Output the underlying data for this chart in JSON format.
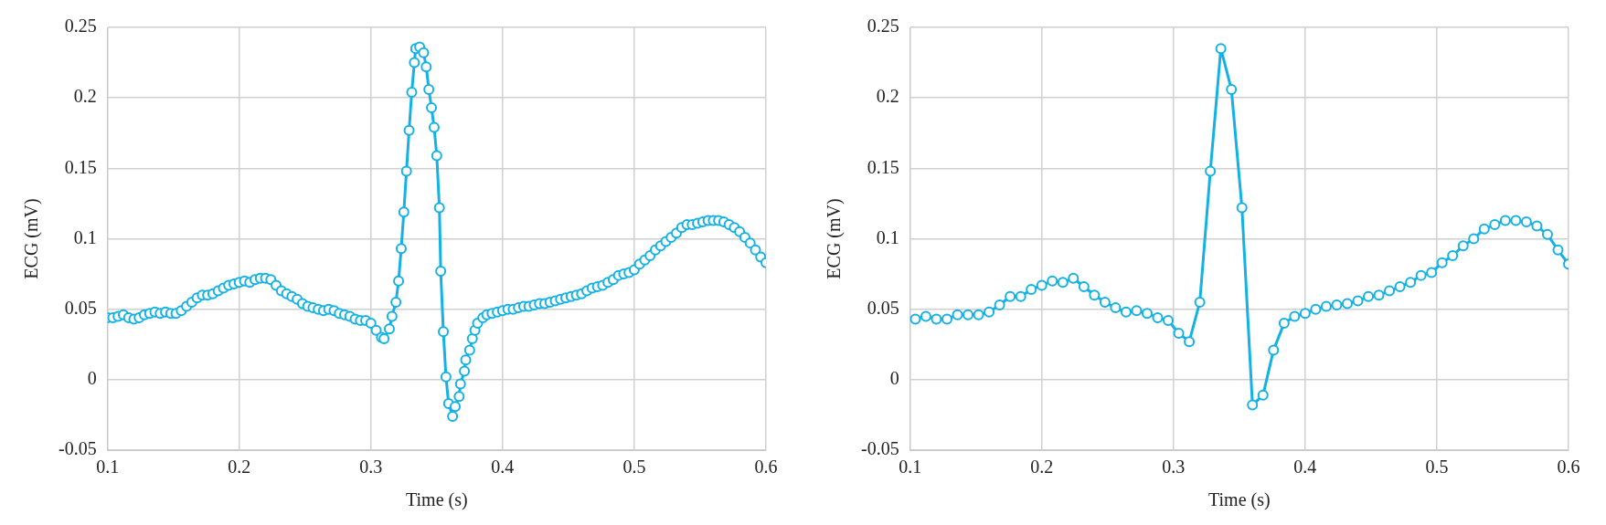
{
  "chart_data": [
    {
      "type": "line",
      "xlabel": "Time (s)",
      "ylabel": "ECG (mV)",
      "xlim": [
        0.1,
        0.6
      ],
      "xticks": [
        0.1,
        0.2,
        0.3,
        0.4,
        0.5,
        0.6
      ],
      "ylim": [
        -0.05,
        0.25
      ],
      "yticks": [
        -0.05,
        0,
        0.05,
        0.1,
        0.15,
        0.2,
        0.25
      ],
      "grid": true,
      "legend": false,
      "marker": "circle",
      "line_style": "solid",
      "series": [
        {
          "color": "#14b1e7",
          "x": [
            0.1,
            0.104,
            0.108,
            0.112,
            0.116,
            0.12,
            0.124,
            0.128,
            0.132,
            0.136,
            0.14,
            0.144,
            0.148,
            0.152,
            0.156,
            0.16,
            0.164,
            0.168,
            0.172,
            0.176,
            0.18,
            0.184,
            0.188,
            0.192,
            0.196,
            0.2,
            0.204,
            0.208,
            0.212,
            0.216,
            0.22,
            0.224,
            0.228,
            0.232,
            0.236,
            0.24,
            0.244,
            0.248,
            0.252,
            0.256,
            0.26,
            0.264,
            0.268,
            0.272,
            0.276,
            0.28,
            0.284,
            0.288,
            0.292,
            0.296,
            0.3,
            0.304,
            0.308,
            0.31,
            0.314,
            0.316,
            0.319,
            0.321,
            0.323,
            0.325,
            0.327,
            0.329,
            0.331,
            0.333,
            0.334,
            0.337,
            0.34,
            0.342,
            0.344,
            0.346,
            0.348,
            0.35,
            0.352,
            0.353,
            0.355,
            0.357,
            0.359,
            0.362,
            0.364,
            0.367,
            0.368,
            0.371,
            0.372,
            0.375,
            0.377,
            0.379,
            0.381,
            0.385,
            0.388,
            0.392,
            0.396,
            0.4,
            0.404,
            0.408,
            0.412,
            0.416,
            0.42,
            0.424,
            0.428,
            0.432,
            0.436,
            0.44,
            0.444,
            0.448,
            0.452,
            0.456,
            0.46,
            0.464,
            0.468,
            0.472,
            0.476,
            0.48,
            0.484,
            0.488,
            0.492,
            0.496,
            0.5,
            0.504,
            0.508,
            0.512,
            0.516,
            0.52,
            0.524,
            0.528,
            0.532,
            0.536,
            0.54,
            0.544,
            0.548,
            0.552,
            0.556,
            0.56,
            0.564,
            0.568,
            0.572,
            0.576,
            0.58,
            0.584,
            0.588,
            0.592,
            0.596,
            0.6
          ],
          "values": [
            0.044,
            0.044,
            0.045,
            0.046,
            0.044,
            0.043,
            0.044,
            0.046,
            0.047,
            0.048,
            0.047,
            0.048,
            0.047,
            0.047,
            0.049,
            0.052,
            0.055,
            0.058,
            0.06,
            0.06,
            0.061,
            0.063,
            0.065,
            0.067,
            0.068,
            0.069,
            0.07,
            0.069,
            0.071,
            0.072,
            0.072,
            0.071,
            0.067,
            0.063,
            0.061,
            0.059,
            0.057,
            0.054,
            0.052,
            0.051,
            0.05,
            0.049,
            0.05,
            0.049,
            0.047,
            0.046,
            0.045,
            0.043,
            0.042,
            0.042,
            0.04,
            0.035,
            0.03,
            0.029,
            0.036,
            0.045,
            0.055,
            0.07,
            0.093,
            0.119,
            0.148,
            0.177,
            0.204,
            0.225,
            0.235,
            0.236,
            0.232,
            0.222,
            0.206,
            0.193,
            0.179,
            0.159,
            0.122,
            0.077,
            0.034,
            0.002,
            -0.017,
            -0.026,
            -0.019,
            -0.012,
            -0.003,
            0.006,
            0.014,
            0.021,
            0.029,
            0.035,
            0.04,
            0.044,
            0.046,
            0.047,
            0.048,
            0.049,
            0.05,
            0.05,
            0.051,
            0.052,
            0.052,
            0.053,
            0.054,
            0.054,
            0.055,
            0.056,
            0.057,
            0.058,
            0.059,
            0.06,
            0.061,
            0.063,
            0.065,
            0.066,
            0.067,
            0.069,
            0.071,
            0.074,
            0.075,
            0.076,
            0.078,
            0.082,
            0.085,
            0.088,
            0.092,
            0.095,
            0.098,
            0.101,
            0.104,
            0.108,
            0.11,
            0.11,
            0.111,
            0.112,
            0.113,
            0.113,
            0.113,
            0.112,
            0.11,
            0.108,
            0.105,
            0.101,
            0.097,
            0.092,
            0.087,
            0.083
          ]
        }
      ]
    },
    {
      "type": "line",
      "xlabel": "Time (s)",
      "ylabel": "ECG (mV)",
      "xlim": [
        0.1,
        0.6
      ],
      "xticks": [
        0.1,
        0.2,
        0.3,
        0.4,
        0.5,
        0.6
      ],
      "ylim": [
        -0.05,
        0.25
      ],
      "yticks": [
        -0.05,
        0,
        0.05,
        0.1,
        0.15,
        0.2,
        0.25
      ],
      "grid": true,
      "legend": false,
      "marker": "circle",
      "line_style": "solid",
      "series": [
        {
          "color": "#14b1e7",
          "x": [
            0.104,
            0.112,
            0.12,
            0.128,
            0.136,
            0.144,
            0.152,
            0.16,
            0.168,
            0.176,
            0.184,
            0.192,
            0.2,
            0.208,
            0.216,
            0.224,
            0.232,
            0.24,
            0.248,
            0.256,
            0.264,
            0.272,
            0.28,
            0.288,
            0.296,
            0.304,
            0.312,
            0.32,
            0.328,
            0.336,
            0.344,
            0.352,
            0.36,
            0.368,
            0.376,
            0.384,
            0.392,
            0.4,
            0.408,
            0.416,
            0.424,
            0.432,
            0.44,
            0.448,
            0.456,
            0.464,
            0.472,
            0.48,
            0.488,
            0.496,
            0.504,
            0.512,
            0.52,
            0.528,
            0.536,
            0.544,
            0.552,
            0.56,
            0.568,
            0.576,
            0.584,
            0.592,
            0.6
          ],
          "values": [
            0.043,
            0.045,
            0.043,
            0.043,
            0.046,
            0.046,
            0.046,
            0.048,
            0.053,
            0.059,
            0.059,
            0.064,
            0.067,
            0.07,
            0.069,
            0.072,
            0.066,
            0.06,
            0.055,
            0.051,
            0.048,
            0.049,
            0.047,
            0.044,
            0.042,
            0.033,
            0.027,
            0.055,
            0.148,
            0.235,
            0.206,
            0.122,
            -0.018,
            -0.011,
            0.021,
            0.04,
            0.045,
            0.047,
            0.05,
            0.052,
            0.053,
            0.054,
            0.056,
            0.059,
            0.06,
            0.063,
            0.066,
            0.069,
            0.074,
            0.076,
            0.083,
            0.088,
            0.095,
            0.1,
            0.107,
            0.11,
            0.113,
            0.113,
            0.112,
            0.109,
            0.103,
            0.092,
            0.082
          ]
        }
      ]
    }
  ]
}
